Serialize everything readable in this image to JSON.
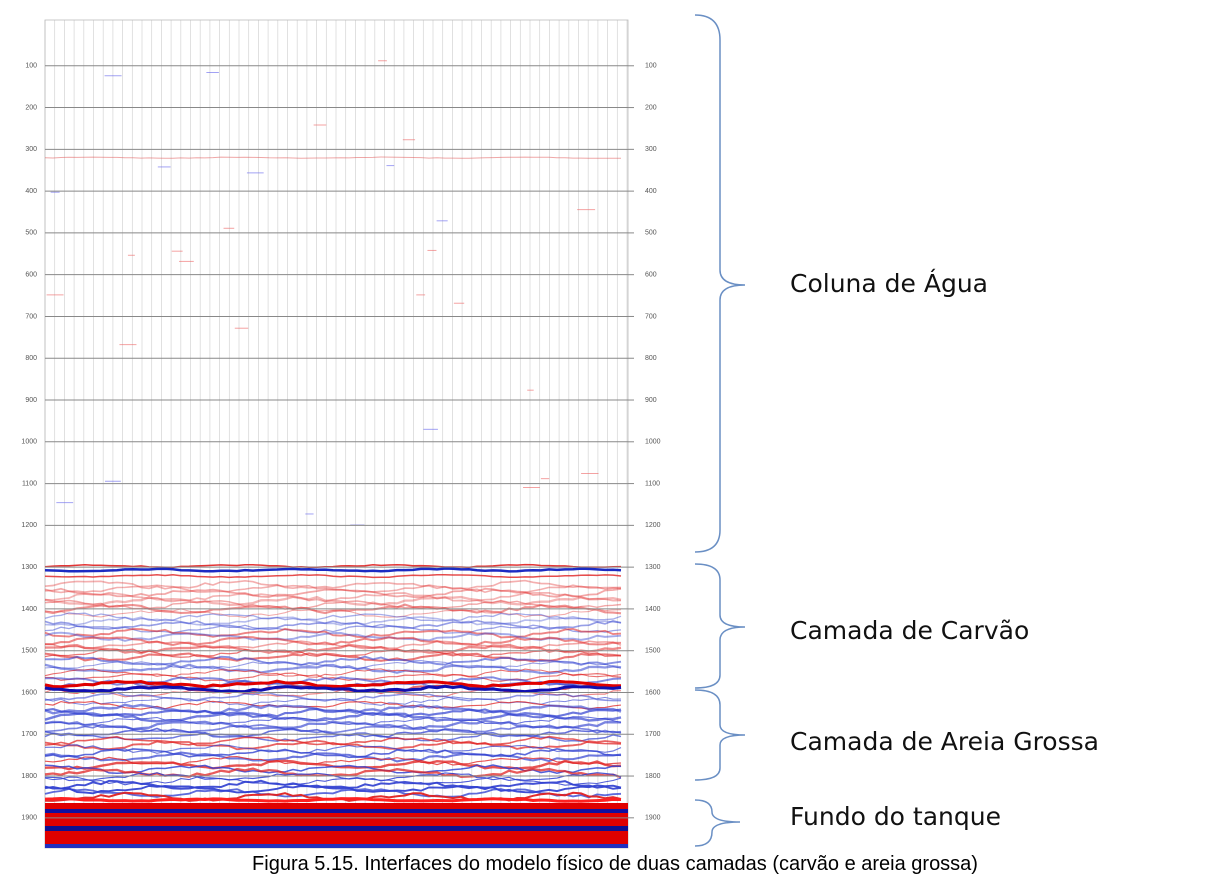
{
  "figure": {
    "left_ticks": [
      100,
      200,
      300,
      400,
      500,
      600,
      700,
      800,
      900,
      1000,
      1100,
      1200,
      1300,
      1400,
      1500,
      1600,
      1700,
      1800,
      1900
    ],
    "right_ticks": [
      100,
      200,
      300,
      400,
      500,
      600,
      700,
      800,
      900,
      1000,
      1100,
      1200,
      1300,
      1400,
      1500,
      1600,
      1700,
      1800,
      1900
    ],
    "annotations": [
      "Coluna de Água",
      "Camada de Carvão",
      "Camada de Areia  Grossa",
      "Fundo do tanque"
    ],
    "caption": "Figura 5.15. Interfaces do modelo físico de duas camadas (carvão e areia grossa)"
  }
}
